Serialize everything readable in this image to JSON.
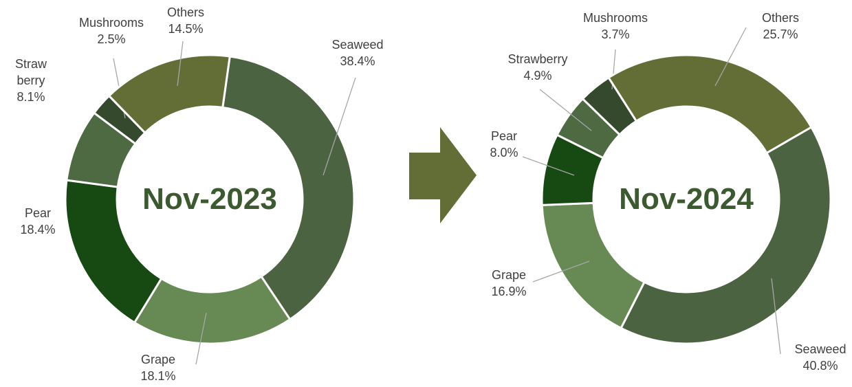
{
  "chart_data": [
    {
      "type": "donut",
      "title": "Nov-2023",
      "categories": [
        "Seaweed",
        "Grape",
        "Pear",
        "Straw\nberry",
        "Mushrooms",
        "Others"
      ],
      "values": [
        38.4,
        18.1,
        18.4,
        8.1,
        2.5,
        14.5
      ],
      "value_labels": [
        "38.4%",
        "18.1%",
        "18.4%",
        "8.1%",
        "2.5%",
        "14.5%"
      ],
      "colors": [
        "#4b6341",
        "#678a55",
        "#174a12",
        "#4d6a42",
        "#35492c",
        "#636e37"
      ]
    },
    {
      "type": "donut",
      "title": "Nov-2024",
      "categories": [
        "Seaweed",
        "Grape",
        "Pear",
        "Strawberry",
        "Mushrooms",
        "Others"
      ],
      "values": [
        40.8,
        16.9,
        8.0,
        4.9,
        3.7,
        25.7
      ],
      "value_labels": [
        "40.8%",
        "16.9%",
        "8.0%",
        "4.9%",
        "3.7%",
        "25.7%"
      ],
      "colors": [
        "#4b6341",
        "#678a55",
        "#174a12",
        "#4d6a42",
        "#35492c",
        "#636e37"
      ]
    }
  ]
}
